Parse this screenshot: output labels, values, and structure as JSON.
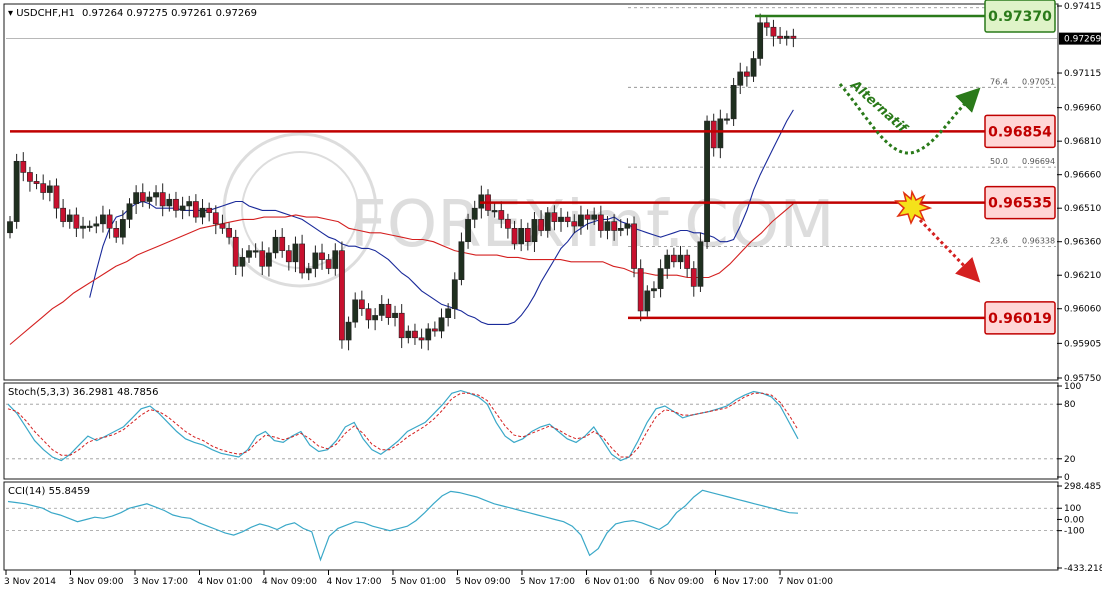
{
  "header": {
    "symbol": "USDCHF,H1",
    "ohlc": "0.97264 0.97275 0.97261 0.97269"
  },
  "watermark": "FOREXimf.COM",
  "annotations": {
    "alternatif": "Alternatif"
  },
  "colors": {
    "up_candle": "#1f2f1f",
    "down_candle": "#c8102e",
    "sma_fast": "#1a2a9a",
    "sma_slow": "#d42020",
    "resistance": "#c00000",
    "target_green": "#2a7a1a",
    "indicator_line": "#3aa8c8",
    "signal_dash": "#d42020"
  },
  "chart_data": [
    {
      "type": "candlestick",
      "name": "price",
      "y_ticks": [
        "0.97415",
        "0.97115",
        "0.96960",
        "0.96810",
        "0.96660",
        "0.96510",
        "0.96360",
        "0.96210",
        "0.96060",
        "0.95905",
        "0.95750"
      ],
      "current_price": "0.97269",
      "levels": [
        {
          "label": "0.97370",
          "value": 0.9737,
          "style": "green"
        },
        {
          "label": "0.96854",
          "value": 0.96854,
          "style": "red"
        },
        {
          "label": "0.96535",
          "value": 0.96535,
          "style": "red"
        },
        {
          "label": "0.96019",
          "value": 0.96019,
          "style": "red"
        }
      ],
      "fibonacci": [
        {
          "ratio": "76.4",
          "price": "0.97051",
          "value": 0.97051
        },
        {
          "ratio": "50.0",
          "price": "0.96694",
          "value": 0.96694
        },
        {
          "ratio": "23.6",
          "price": "0.96338",
          "value": 0.96338
        }
      ],
      "x_ticks": [
        "3 Nov 2014",
        "3 Nov 09:00",
        "3 Nov 17:00",
        "4 Nov 01:00",
        "4 Nov 09:00",
        "4 Nov 17:00",
        "5 Nov 01:00",
        "5 Nov 09:00",
        "5 Nov 17:00",
        "6 Nov 01:00",
        "6 Nov 09:00",
        "6 Nov 17:00",
        "7 Nov 01:00"
      ],
      "close": [
        0.9645,
        0.9672,
        0.9667,
        0.9663,
        0.9662,
        0.9658,
        0.9661,
        0.9651,
        0.9645,
        0.9648,
        0.9642,
        0.9643,
        0.9643,
        0.9644,
        0.9648,
        0.9642,
        0.9638,
        0.9646,
        0.9653,
        0.9658,
        0.9654,
        0.9656,
        0.9658,
        0.9652,
        0.9655,
        0.965,
        0.9652,
        0.9654,
        0.9647,
        0.9651,
        0.9649,
        0.9644,
        0.9642,
        0.9638,
        0.9625,
        0.9629,
        0.9632,
        0.9632,
        0.9625,
        0.9631,
        0.9638,
        0.9632,
        0.9627,
        0.9635,
        0.9622,
        0.9624,
        0.9631,
        0.9628,
        0.9624,
        0.9632,
        0.9592,
        0.96,
        0.961,
        0.9606,
        0.9601,
        0.9603,
        0.9608,
        0.9602,
        0.9604,
        0.9593,
        0.9596,
        0.9593,
        0.9592,
        0.9597,
        0.9596,
        0.9602,
        0.9606,
        0.9619,
        0.9636,
        0.9646,
        0.9651,
        0.9657,
        0.965,
        0.965,
        0.9646,
        0.9642,
        0.9635,
        0.9642,
        0.9636,
        0.9646,
        0.9641,
        0.9649,
        0.9645,
        0.9647,
        0.9645,
        0.9643,
        0.9648,
        0.9646,
        0.9648,
        0.9641,
        0.9645,
        0.9641,
        0.9642,
        0.9644,
        0.9624,
        0.9605,
        0.9614,
        0.9615,
        0.9624,
        0.963,
        0.9627,
        0.963,
        0.9624,
        0.9616,
        0.9636,
        0.969,
        0.9678,
        0.9691,
        0.9691,
        0.9706,
        0.9712,
        0.971,
        0.9718,
        0.9734,
        0.9732,
        0.9728,
        0.9727,
        0.9728,
        0.9727
      ],
      "sma_fast": [
        0.9611,
        0.9623,
        0.9634,
        0.9642,
        0.9647,
        0.9648,
        0.9651,
        0.9653,
        0.9654,
        0.9653,
        0.9651,
        0.9651,
        0.9651,
        0.9651,
        0.965,
        0.965,
        0.965,
        0.965,
        0.965,
        0.9651,
        0.9652,
        0.9653,
        0.9654,
        0.9654,
        0.9652,
        0.9651,
        0.965,
        0.965,
        0.965,
        0.9649,
        0.9648,
        0.9647,
        0.9646,
        0.9644,
        0.9642,
        0.964,
        0.9638,
        0.9637,
        0.9635,
        0.9634,
        0.9634,
        0.9633,
        0.9633,
        0.9632,
        0.963,
        0.9628,
        0.9625,
        0.9622,
        0.962,
        0.9617,
        0.9614,
        0.9612,
        0.961,
        0.9608,
        0.9607,
        0.9606,
        0.9605,
        0.9603,
        0.9602,
        0.96,
        0.9599,
        0.9599,
        0.9599,
        0.9599,
        0.96,
        0.9603,
        0.9607,
        0.9612,
        0.9618,
        0.9623,
        0.9628,
        0.9633,
        0.9636,
        0.964,
        0.9642,
        0.9644,
        0.9645,
        0.9646,
        0.9646,
        0.9647,
        0.9645,
        0.9644,
        0.9642,
        0.9641,
        0.964,
        0.9639,
        0.9638,
        0.9639,
        0.964,
        0.9641,
        0.9641,
        0.964,
        0.964,
        0.9639,
        0.9638,
        0.9636,
        0.9636,
        0.9637,
        0.9643,
        0.965,
        0.9659,
        0.9666,
        0.9672,
        0.9678,
        0.9684,
        0.969,
        0.9695
      ],
      "sma_slow": [
        0.959,
        0.9594,
        0.9598,
        0.9602,
        0.9606,
        0.9609,
        0.9613,
        0.9616,
        0.9619,
        0.9622,
        0.9625,
        0.9627,
        0.963,
        0.9632,
        0.9634,
        0.9636,
        0.9638,
        0.964,
        0.9642,
        0.9643,
        0.9644,
        0.9645,
        0.9646,
        0.9646,
        0.9647,
        0.9647,
        0.9647,
        0.9648,
        0.9647,
        0.9647,
        0.9646,
        0.9645,
        0.9642,
        0.9641,
        0.964,
        0.964,
        0.9639,
        0.9638,
        0.9637,
        0.9637,
        0.9636,
        0.9634,
        0.9632,
        0.9631,
        0.963,
        0.963,
        0.963,
        0.9629,
        0.9629,
        0.9628,
        0.9628,
        0.9628,
        0.9628,
        0.9627,
        0.9627,
        0.9627,
        0.9627,
        0.9625,
        0.9624,
        0.9622,
        0.9622,
        0.9621,
        0.9621,
        0.9621,
        0.962,
        0.962,
        0.962,
        0.9622,
        0.9626,
        0.9631,
        0.9636,
        0.964,
        0.9645,
        0.9649,
        0.9653
      ]
    },
    {
      "type": "line",
      "name": "stochastic",
      "label": "Stoch(5,3,3) 36.2981 48.7856",
      "y_ticks": [
        "100",
        "80",
        "20",
        "0"
      ],
      "main": [
        80,
        70,
        55,
        40,
        30,
        22,
        18,
        25,
        35,
        45,
        40,
        45,
        50,
        55,
        65,
        75,
        78,
        70,
        60,
        50,
        42,
        38,
        35,
        30,
        26,
        24,
        22,
        30,
        45,
        50,
        40,
        38,
        45,
        50,
        35,
        28,
        30,
        40,
        55,
        60,
        42,
        30,
        25,
        32,
        40,
        50,
        55,
        60,
        70,
        80,
        92,
        95,
        92,
        88,
        80,
        60,
        45,
        38,
        42,
        50,
        55,
        58,
        50,
        42,
        38,
        45,
        55,
        40,
        25,
        18,
        22,
        40,
        60,
        75,
        78,
        72,
        65,
        68,
        70,
        72,
        75,
        78,
        85,
        90,
        94,
        92,
        88,
        78,
        60,
        42
      ],
      "signal": [
        75,
        72,
        62,
        50,
        40,
        30,
        24,
        24,
        30,
        38,
        42,
        44,
        47,
        52,
        60,
        68,
        74,
        72,
        66,
        58,
        50,
        44,
        40,
        34,
        30,
        27,
        25,
        28,
        38,
        46,
        44,
        41,
        44,
        48,
        42,
        34,
        31,
        36,
        48,
        56,
        48,
        36,
        30,
        30,
        36,
        44,
        50,
        56,
        64,
        74,
        86,
        92,
        92,
        90,
        84,
        70,
        56,
        46,
        44,
        48,
        52,
        56,
        52,
        46,
        42,
        44,
        50,
        44,
        32,
        22,
        22,
        32,
        50,
        66,
        74,
        72,
        68,
        68,
        70,
        72,
        74,
        76,
        82,
        88,
        92,
        92,
        90,
        82,
        68,
        52
      ]
    },
    {
      "type": "line",
      "name": "cci",
      "label": "CCI(14) 55.8459",
      "y_ticks": [
        "298.4857",
        "100",
        "0.00",
        "-100",
        "-433.2184"
      ],
      "values": [
        160,
        150,
        140,
        120,
        100,
        60,
        40,
        10,
        -20,
        0,
        20,
        10,
        30,
        60,
        100,
        120,
        140,
        110,
        80,
        40,
        20,
        10,
        -30,
        -60,
        -90,
        -120,
        -140,
        -110,
        -70,
        -40,
        -60,
        -90,
        -50,
        -30,
        -80,
        -110,
        -360,
        -150,
        -80,
        -50,
        -20,
        -30,
        -60,
        -80,
        -100,
        -80,
        -60,
        -10,
        60,
        140,
        210,
        250,
        240,
        220,
        200,
        170,
        140,
        120,
        100,
        80,
        60,
        40,
        20,
        0,
        -20,
        -60,
        -140,
        -320,
        -260,
        -120,
        -40,
        -20,
        -10,
        -30,
        -60,
        -90,
        -40,
        60,
        120,
        200,
        260,
        240,
        220,
        200,
        180,
        160,
        140,
        120,
        100,
        80,
        60,
        56
      ],
      "levels": [
        100,
        -100
      ]
    }
  ]
}
